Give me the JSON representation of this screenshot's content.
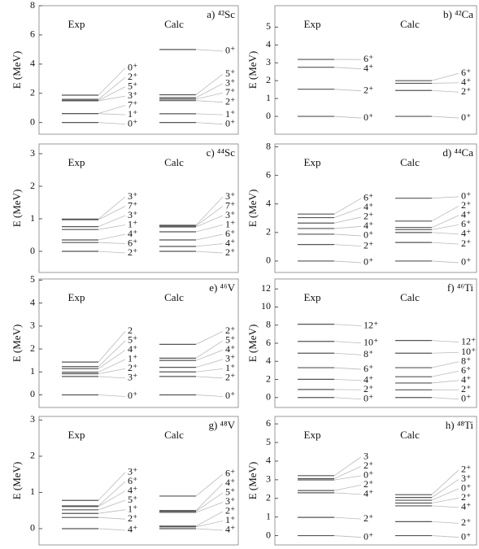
{
  "chart_data": [
    {
      "type": "level-scheme",
      "title": "a) ⁴²Sc",
      "ylabel": "E (MeV)",
      "ylim": [
        -0.8,
        8
      ],
      "yticks": [
        0,
        2,
        4,
        6,
        8
      ],
      "columns": [
        {
          "name": "Exp",
          "values": [
            0,
            0.611,
            0.617,
            1.49,
            1.51,
            1.586,
            1.873
          ],
          "labels": [
            "0⁺",
            "1⁺",
            "7⁺",
            "3⁺",
            "5⁺",
            "2⁺",
            "0⁺"
          ]
        },
        {
          "name": "Calc",
          "values": [
            0,
            0.6,
            1.5,
            1.6,
            1.7,
            1.9,
            5.0
          ],
          "labels": [
            "0⁺",
            "1⁺",
            "2⁺",
            "7⁺",
            "3⁺",
            "5⁺",
            "0⁺"
          ]
        }
      ]
    },
    {
      "type": "level-scheme",
      "title": "b) ⁴²Ca",
      "ylabel": "E (MeV)",
      "ylim": [
        -1,
        6.2
      ],
      "yticks": [
        0,
        1,
        2,
        3,
        4,
        5
      ],
      "columns": [
        {
          "name": "Exp",
          "values": [
            0,
            1.52,
            2.75,
            3.19
          ],
          "labels": [
            "0⁺",
            "2⁺",
            "4⁺",
            "6⁺"
          ]
        },
        {
          "name": "Calc",
          "values": [
            0,
            1.45,
            1.85,
            2.0
          ],
          "labels": [
            "0⁺",
            "2⁺",
            "4⁺",
            "6⁺"
          ]
        }
      ]
    },
    {
      "type": "level-scheme",
      "title": "c) ⁴⁴Sc",
      "ylabel": "E (MeV)",
      "ylim": [
        -0.65,
        3.3
      ],
      "yticks": [
        0,
        1,
        2,
        3
      ],
      "columns": [
        {
          "name": "Exp",
          "values": [
            0,
            0.27,
            0.35,
            0.67,
            0.76,
            0.97,
            0.99
          ],
          "labels": [
            "2⁺",
            "6⁺",
            "4⁺",
            "1⁺",
            "3⁺",
            "7⁺",
            "3⁺"
          ]
        },
        {
          "name": "Calc",
          "values": [
            0,
            0.15,
            0.35,
            0.6,
            0.75,
            0.78,
            0.8
          ],
          "labels": [
            "2⁺",
            "4⁺",
            "6⁺",
            "1⁺",
            "3⁺",
            "7⁺",
            "3⁺"
          ]
        }
      ]
    },
    {
      "type": "level-scheme",
      "title": "d) ⁴⁴Ca",
      "ylabel": "E (MeV)",
      "ylim": [
        -0.8,
        8.2
      ],
      "yticks": [
        0,
        2,
        4,
        6,
        8
      ],
      "columns": [
        {
          "name": "Exp",
          "values": [
            0,
            1.16,
            1.88,
            2.28,
            2.66,
            3.04,
            3.29
          ],
          "labels": [
            "0⁺",
            "2⁺",
            "0⁺",
            "4⁺",
            "2⁺",
            "4⁺",
            "6⁺"
          ]
        },
        {
          "name": "Calc",
          "values": [
            0,
            1.3,
            2.0,
            2.2,
            2.35,
            2.8,
            4.4
          ],
          "labels": [
            "0⁺",
            "2⁺",
            "4⁺",
            "6⁺",
            "4⁺",
            "2⁺",
            "0⁺"
          ]
        }
      ]
    },
    {
      "type": "level-scheme",
      "title": "e) ⁴⁶V",
      "ylabel": "E (MeV)",
      "ylim": [
        -0.55,
        5.05
      ],
      "yticks": [
        0,
        1,
        2,
        3,
        4,
        5
      ],
      "columns": [
        {
          "name": "Exp",
          "values": [
            0,
            0.8,
            0.92,
            0.99,
            1.14,
            1.23,
            1.43
          ],
          "labels": [
            "0⁺",
            "3⁺",
            "2⁺",
            "1⁺",
            "4⁺",
            "5⁺",
            "2"
          ]
        },
        {
          "name": "Calc",
          "values": [
            0,
            0.8,
            1.0,
            1.2,
            1.5,
            1.6,
            2.2
          ],
          "labels": [
            "0⁺",
            "2⁺",
            "1⁺",
            "3⁺",
            "4⁺",
            "5⁺",
            "2⁺"
          ]
        }
      ]
    },
    {
      "type": "level-scheme",
      "title": "f) ⁴⁶Ti",
      "ylabel": "E (MeV)",
      "ylim": [
        -1.1,
        13.1
      ],
      "yticks": [
        0,
        2,
        4,
        6,
        8,
        10,
        12
      ],
      "columns": [
        {
          "name": "Exp",
          "values": [
            0,
            0.889,
            2.01,
            3.3,
            4.9,
            6.2,
            8.1
          ],
          "labels": [
            "0⁺",
            "2⁺",
            "4⁺",
            "6⁺",
            "8⁺",
            "10⁺",
            "12⁺"
          ]
        },
        {
          "name": "Calc",
          "values": [
            0,
            0.85,
            1.6,
            2.3,
            3.3,
            4.9,
            6.3
          ],
          "labels": [
            "0⁺",
            "2⁺",
            "4⁺",
            "6⁺",
            "8⁺",
            "10⁺",
            "12⁺"
          ]
        }
      ]
    },
    {
      "type": "level-scheme",
      "title": "g) ⁴⁸V",
      "ylabel": "E (MeV)",
      "ylim": [
        -0.45,
        3.1
      ],
      "yticks": [
        0,
        1,
        2,
        3
      ],
      "columns": [
        {
          "name": "Exp",
          "values": [
            0,
            0.31,
            0.42,
            0.52,
            0.61,
            0.63,
            0.78
          ],
          "labels": [
            "4⁺",
            "2⁺",
            "1⁺",
            "5⁺",
            "4⁺",
            "6⁺",
            "3⁺"
          ]
        },
        {
          "name": "Calc",
          "values": [
            0,
            0.05,
            0.07,
            0.45,
            0.48,
            0.5,
            0.9
          ],
          "labels": [
            "4⁺",
            "1⁺",
            "2⁺",
            "3⁺",
            "5⁺",
            "4⁺",
            "6⁺"
          ]
        }
      ]
    },
    {
      "type": "level-scheme",
      "title": "h) ⁴⁸Ti",
      "ylabel": "E (MeV)",
      "ylim": [
        -0.5,
        6.4
      ],
      "yticks": [
        0,
        1,
        2,
        3,
        4,
        5,
        6
      ],
      "columns": [
        {
          "name": "Exp",
          "values": [
            0,
            0.98,
            2.3,
            2.42,
            2.99,
            3.06,
            3.22
          ],
          "labels": [
            "0⁺",
            "2⁺",
            "4⁺",
            "2⁺",
            "0⁺",
            "2⁺",
            "3"
          ]
        },
        {
          "name": "Calc",
          "values": [
            0,
            0.75,
            1.6,
            1.75,
            1.9,
            2.05,
            2.2
          ],
          "labels": [
            "0⁺",
            "2⁺",
            "4⁺",
            "2⁺",
            "0⁺",
            "3⁺",
            "2⁺"
          ]
        }
      ]
    }
  ]
}
